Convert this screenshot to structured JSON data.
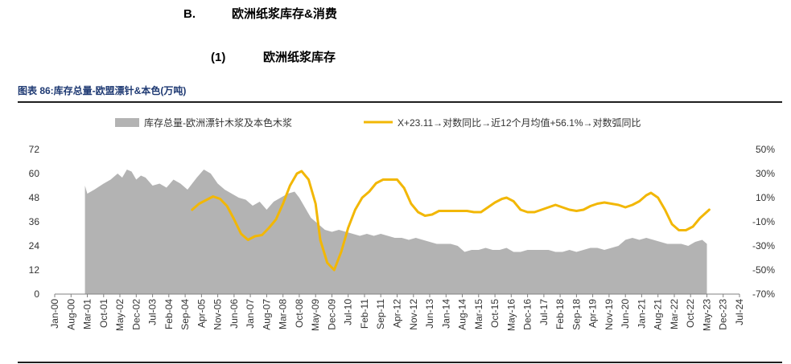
{
  "header": {
    "section_num": "B.",
    "section_title": "欧洲纸浆库存&消费",
    "sub_num": "(1)",
    "sub_title": "欧洲纸浆库存",
    "figure_label": "图表 86:库存总量-欧盟漂针&本色(万吨)"
  },
  "chart_data": {
    "type": "area",
    "left_axis": {
      "ticks": [
        "0",
        "12",
        "24",
        "36",
        "48",
        "60",
        "72"
      ],
      "min": 0,
      "max": 72
    },
    "right_axis": {
      "ticks": [
        "-70%",
        "-50%",
        "-30%",
        "-10%",
        "10%",
        "30%",
        "50%"
      ],
      "min": -70,
      "max": 50,
      "unit": "%"
    },
    "x_ticks": [
      "Jan-00",
      "Aug-00",
      "Mar-01",
      "Oct-01",
      "May-02",
      "Dec-02",
      "Jul-03",
      "Feb-04",
      "Sep-04",
      "Apr-05",
      "Nov-05",
      "Jun-06",
      "Jan-07",
      "Aug-07",
      "Mar-08",
      "Oct-08",
      "May-09",
      "Dec-09",
      "Jul-10",
      "Feb-11",
      "Sep-11",
      "Apr-12",
      "Nov-12",
      "Jun-13",
      "Jan-14",
      "Aug-14",
      "Mar-15",
      "Oct-15",
      "May-16",
      "Dec-16",
      "Jul-17",
      "Feb-18",
      "Sep-18",
      "Apr-19",
      "Nov-19",
      "Jun-20",
      "Jan-21",
      "Aug-21",
      "Mar-22",
      "Oct-22",
      "May-23",
      "Dec-23",
      "Jul-24"
    ],
    "x_range": [
      "2000-01",
      "2024-07"
    ],
    "series": [
      {
        "name": "库存总量-欧洲漂针木浆及本色木浆",
        "axis": "left",
        "style": "area",
        "color": "#b3b3b3",
        "points": [
          [
            "2001-02",
            54
          ],
          [
            "2001-03",
            50
          ],
          [
            "2001-06",
            52
          ],
          [
            "2001-10",
            55
          ],
          [
            "2002-01",
            57
          ],
          [
            "2002-04",
            60
          ],
          [
            "2002-06",
            58
          ],
          [
            "2002-08",
            62
          ],
          [
            "2002-10",
            61
          ],
          [
            "2002-12",
            57
          ],
          [
            "2003-02",
            59
          ],
          [
            "2003-04",
            58
          ],
          [
            "2003-07",
            54
          ],
          [
            "2003-10",
            55
          ],
          [
            "2004-01",
            53
          ],
          [
            "2004-04",
            57
          ],
          [
            "2004-07",
            55
          ],
          [
            "2004-10",
            52
          ],
          [
            "2005-02",
            58
          ],
          [
            "2005-05",
            62
          ],
          [
            "2005-08",
            60
          ],
          [
            "2005-11",
            55
          ],
          [
            "2006-02",
            52
          ],
          [
            "2006-05",
            50
          ],
          [
            "2006-08",
            48
          ],
          [
            "2006-11",
            47
          ],
          [
            "2007-02",
            44
          ],
          [
            "2007-05",
            46
          ],
          [
            "2007-08",
            42
          ],
          [
            "2007-11",
            46
          ],
          [
            "2008-02",
            48
          ],
          [
            "2008-05",
            50
          ],
          [
            "2008-08",
            51
          ],
          [
            "2008-10",
            48
          ],
          [
            "2009-01",
            42
          ],
          [
            "2009-03",
            38
          ],
          [
            "2009-06",
            35
          ],
          [
            "2009-09",
            32
          ],
          [
            "2009-12",
            31
          ],
          [
            "2010-03",
            32
          ],
          [
            "2010-06",
            31
          ],
          [
            "2010-09",
            30
          ],
          [
            "2010-12",
            29
          ],
          [
            "2011-03",
            30
          ],
          [
            "2011-06",
            29
          ],
          [
            "2011-09",
            30
          ],
          [
            "2011-12",
            29
          ],
          [
            "2012-03",
            28
          ],
          [
            "2012-06",
            28
          ],
          [
            "2012-09",
            27
          ],
          [
            "2012-12",
            28
          ],
          [
            "2013-03",
            27
          ],
          [
            "2013-06",
            26
          ],
          [
            "2013-09",
            25
          ],
          [
            "2013-12",
            25
          ],
          [
            "2014-03",
            25
          ],
          [
            "2014-06",
            24
          ],
          [
            "2014-09",
            21
          ],
          [
            "2014-12",
            22
          ],
          [
            "2015-03",
            22
          ],
          [
            "2015-06",
            23
          ],
          [
            "2015-09",
            22
          ],
          [
            "2015-12",
            22
          ],
          [
            "2016-03",
            23
          ],
          [
            "2016-06",
            21
          ],
          [
            "2016-09",
            21
          ],
          [
            "2016-12",
            22
          ],
          [
            "2017-03",
            22
          ],
          [
            "2017-06",
            22
          ],
          [
            "2017-09",
            22
          ],
          [
            "2017-12",
            21
          ],
          [
            "2018-03",
            21
          ],
          [
            "2018-06",
            22
          ],
          [
            "2018-09",
            21
          ],
          [
            "2018-12",
            22
          ],
          [
            "2019-03",
            23
          ],
          [
            "2019-06",
            23
          ],
          [
            "2019-09",
            22
          ],
          [
            "2019-12",
            23
          ],
          [
            "2020-03",
            24
          ],
          [
            "2020-06",
            27
          ],
          [
            "2020-09",
            28
          ],
          [
            "2020-12",
            27
          ],
          [
            "2021-03",
            28
          ],
          [
            "2021-06",
            27
          ],
          [
            "2021-09",
            26
          ],
          [
            "2021-12",
            25
          ],
          [
            "2022-03",
            25
          ],
          [
            "2022-06",
            25
          ],
          [
            "2022-09",
            24
          ],
          [
            "2022-12",
            26
          ],
          [
            "2023-03",
            27
          ],
          [
            "2023-05",
            25
          ]
        ]
      },
      {
        "name": "X+23.11→对数同比→近12个月均值+56.1%→对数弧同比",
        "axis": "right",
        "style": "line",
        "color": "#f2b705",
        "points": [
          [
            "2004-12",
            0
          ],
          [
            "2005-03",
            5
          ],
          [
            "2005-06",
            8
          ],
          [
            "2005-09",
            11
          ],
          [
            "2005-12",
            9
          ],
          [
            "2006-03",
            3
          ],
          [
            "2006-06",
            -8
          ],
          [
            "2006-09",
            -20
          ],
          [
            "2006-12",
            -25
          ],
          [
            "2007-03",
            -22
          ],
          [
            "2007-06",
            -21
          ],
          [
            "2007-09",
            -15
          ],
          [
            "2007-12",
            -8
          ],
          [
            "2008-03",
            5
          ],
          [
            "2008-06",
            20
          ],
          [
            "2008-09",
            30
          ],
          [
            "2008-11",
            32
          ],
          [
            "2009-02",
            25
          ],
          [
            "2009-05",
            5
          ],
          [
            "2009-07",
            -25
          ],
          [
            "2009-10",
            -44
          ],
          [
            "2010-01",
            -50
          ],
          [
            "2010-04",
            -35
          ],
          [
            "2010-07",
            -15
          ],
          [
            "2010-10",
            0
          ],
          [
            "2011-01",
            10
          ],
          [
            "2011-04",
            15
          ],
          [
            "2011-07",
            22
          ],
          [
            "2011-10",
            25
          ],
          [
            "2012-01",
            25
          ],
          [
            "2012-04",
            25
          ],
          [
            "2012-07",
            18
          ],
          [
            "2012-10",
            5
          ],
          [
            "2013-01",
            -2
          ],
          [
            "2013-04",
            -5
          ],
          [
            "2013-07",
            -4
          ],
          [
            "2013-10",
            -1
          ],
          [
            "2014-01",
            -1
          ],
          [
            "2014-04",
            -1
          ],
          [
            "2014-07",
            -1
          ],
          [
            "2014-10",
            -1
          ],
          [
            "2015-01",
            -2
          ],
          [
            "2015-04",
            -2
          ],
          [
            "2015-07",
            2
          ],
          [
            "2015-10",
            6
          ],
          [
            "2016-01",
            9
          ],
          [
            "2016-03",
            10
          ],
          [
            "2016-06",
            7
          ],
          [
            "2016-09",
            0
          ],
          [
            "2016-12",
            -2
          ],
          [
            "2017-03",
            -2
          ],
          [
            "2017-06",
            0
          ],
          [
            "2017-09",
            2
          ],
          [
            "2017-12",
            4
          ],
          [
            "2018-03",
            2
          ],
          [
            "2018-06",
            0
          ],
          [
            "2018-09",
            -1
          ],
          [
            "2018-12",
            0
          ],
          [
            "2019-03",
            3
          ],
          [
            "2019-06",
            5
          ],
          [
            "2019-09",
            6
          ],
          [
            "2019-12",
            5
          ],
          [
            "2020-03",
            4
          ],
          [
            "2020-06",
            2
          ],
          [
            "2020-09",
            4
          ],
          [
            "2020-12",
            7
          ],
          [
            "2021-03",
            12
          ],
          [
            "2021-05",
            14
          ],
          [
            "2021-08",
            10
          ],
          [
            "2021-11",
            0
          ],
          [
            "2022-02",
            -12
          ],
          [
            "2022-05",
            -17
          ],
          [
            "2022-08",
            -17
          ],
          [
            "2022-11",
            -14
          ],
          [
            "2023-02",
            -7
          ],
          [
            "2023-06",
            0
          ]
        ]
      }
    ],
    "legend_position": "top",
    "grid": false
  },
  "colors": {
    "area": "#b3b3b3",
    "line": "#f2b705",
    "figure_title": "#1f3a73",
    "axis": "#808080"
  }
}
